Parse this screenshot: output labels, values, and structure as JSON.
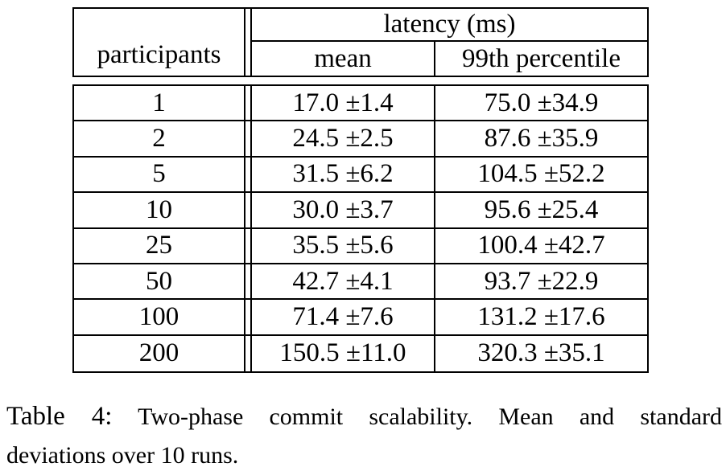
{
  "table": {
    "header": {
      "col1": "participants",
      "group": "latency (ms)",
      "sub1": "mean",
      "sub2": "99th percentile"
    },
    "rows": [
      {
        "participants": "1",
        "mean": "17.0 ±1.4",
        "p99": "75.0 ±34.9"
      },
      {
        "participants": "2",
        "mean": "24.5 ±2.5",
        "p99": "87.6 ±35.9"
      },
      {
        "participants": "5",
        "mean": "31.5 ±6.2",
        "p99": "104.5 ±52.2"
      },
      {
        "participants": "10",
        "mean": "30.0 ±3.7",
        "p99": "95.6 ±25.4"
      },
      {
        "participants": "25",
        "mean": "35.5 ±5.6",
        "p99": "100.4 ±42.7"
      },
      {
        "participants": "50",
        "mean": "42.7 ±4.1",
        "p99": "93.7 ±22.9"
      },
      {
        "participants": "100",
        "mean": "71.4 ±7.6",
        "p99": "131.2 ±17.6"
      },
      {
        "participants": "200",
        "mean": "150.5 ±11.0",
        "p99": "320.3 ±35.1"
      }
    ]
  },
  "caption": {
    "label": "Table 4:",
    "line1": "Two-phase commit scalability.  Mean and standard",
    "line2": "deviations over 10 runs."
  },
  "colors": {
    "text": "#000000",
    "background": "#ffffff",
    "border": "#000000"
  },
  "chart_data": {
    "type": "table",
    "title": "Two-phase commit scalability",
    "columns": [
      "participants",
      "latency mean (ms)",
      "latency 99th percentile (ms)"
    ],
    "participants": [
      1,
      2,
      5,
      10,
      25,
      50,
      100,
      200
    ],
    "series": [
      {
        "name": "mean",
        "values": [
          17.0,
          24.5,
          31.5,
          30.0,
          35.5,
          42.7,
          71.4,
          150.5
        ],
        "sd": [
          1.4,
          2.5,
          6.2,
          3.7,
          5.6,
          4.1,
          7.6,
          11.0
        ]
      },
      {
        "name": "99th percentile",
        "values": [
          75.0,
          87.6,
          104.5,
          95.6,
          100.4,
          93.7,
          131.2,
          320.3
        ],
        "sd": [
          34.9,
          35.9,
          52.2,
          25.4,
          42.7,
          22.9,
          17.6,
          35.1
        ]
      }
    ]
  }
}
